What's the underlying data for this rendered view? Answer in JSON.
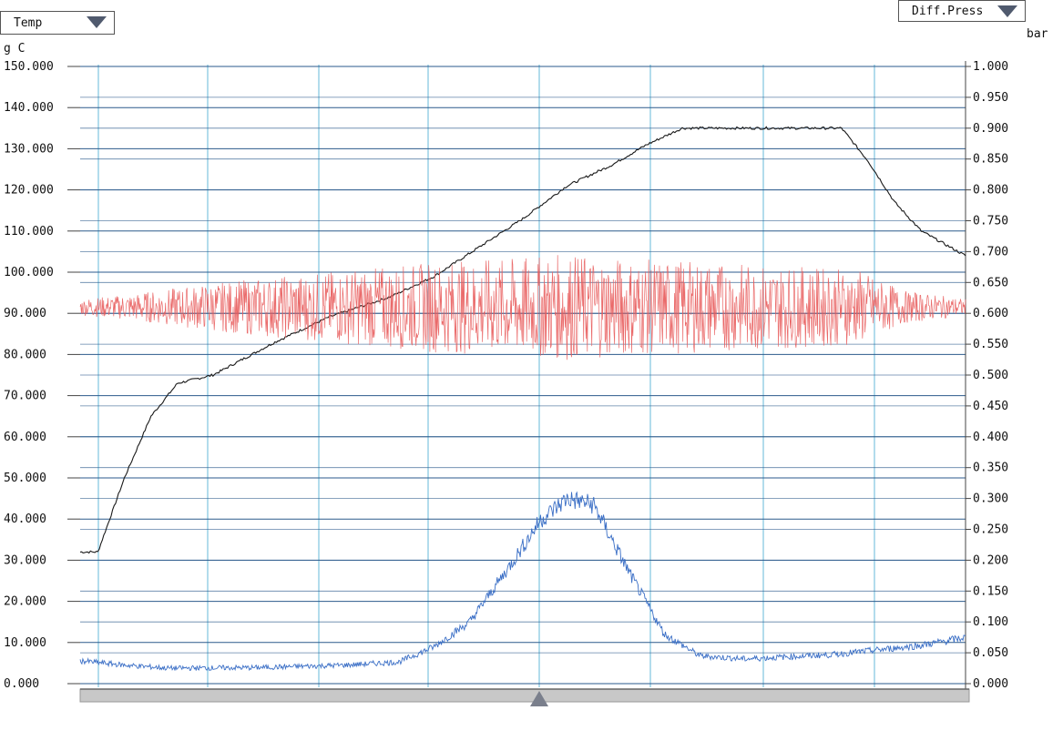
{
  "controls": {
    "left_selector": "Temp",
    "right_selector": "Diff.Press",
    "left_unit": "g C",
    "right_unit": "bar"
  },
  "colors": {
    "grid": "#2b5a8c",
    "vgrid": "#7fc4e0",
    "temp": "#1a1a1a",
    "noise": "#e85a5a",
    "pressure": "#3b6fc6",
    "scrollbar": "#c8c8c8",
    "thumb": "#7a7f8c"
  },
  "chart_data": {
    "type": "line",
    "left_axis": {
      "ylim": [
        0,
        150
      ],
      "ticks": [
        "150.000",
        "140.000",
        "130.000",
        "120.000",
        "110.000",
        "100.000",
        "90.000",
        "80.000",
        "70.000",
        "60.000",
        "50.000",
        "40.000",
        "30.000",
        "20.000",
        "10.000",
        "0.000"
      ]
    },
    "right_axis": {
      "ylim": [
        0,
        1
      ],
      "ticks": [
        "1.000",
        "0.950",
        "0.900",
        "0.850",
        "0.800",
        "0.750",
        "0.700",
        "0.650",
        "0.600",
        "0.550",
        "0.500",
        "0.450",
        "0.400",
        "0.350",
        "0.300",
        "0.250",
        "0.200",
        "0.150",
        "0.100",
        "0.050",
        "0.000"
      ]
    },
    "x_domain": [
      0,
      100
    ],
    "series": [
      {
        "axis": "left",
        "x": [
          0,
          2,
          5,
          8,
          11,
          15,
          22,
          28,
          35,
          40,
          45,
          50,
          55,
          60,
          64,
          68,
          75,
          82,
          86,
          89,
          92,
          95,
          100
        ],
        "y": [
          32,
          32,
          50,
          65,
          73,
          75,
          83,
          89,
          94,
          99,
          106,
          113,
          121,
          126,
          131,
          135,
          135,
          135,
          135,
          127,
          117,
          110,
          104
        ]
      },
      {
        "axis": "left",
        "center": 91.5,
        "x": [
          0,
          5,
          12,
          20,
          30,
          40,
          50,
          55,
          60,
          70,
          80,
          88,
          93,
          100
        ],
        "amplitude": [
          2,
          3,
          5,
          7,
          9,
          11,
          12,
          13,
          12,
          11,
          10,
          9,
          4,
          2
        ]
      },
      {
        "axis": "right",
        "x": [
          0,
          5,
          10,
          20,
          30,
          36,
          40,
          44,
          48,
          52,
          55,
          58,
          62,
          66,
          70,
          75,
          85,
          95,
          100
        ],
        "y": [
          0.037,
          0.03,
          0.025,
          0.026,
          0.03,
          0.035,
          0.06,
          0.1,
          0.18,
          0.265,
          0.3,
          0.29,
          0.18,
          0.08,
          0.045,
          0.04,
          0.047,
          0.062,
          0.075
        ]
      }
    ]
  }
}
